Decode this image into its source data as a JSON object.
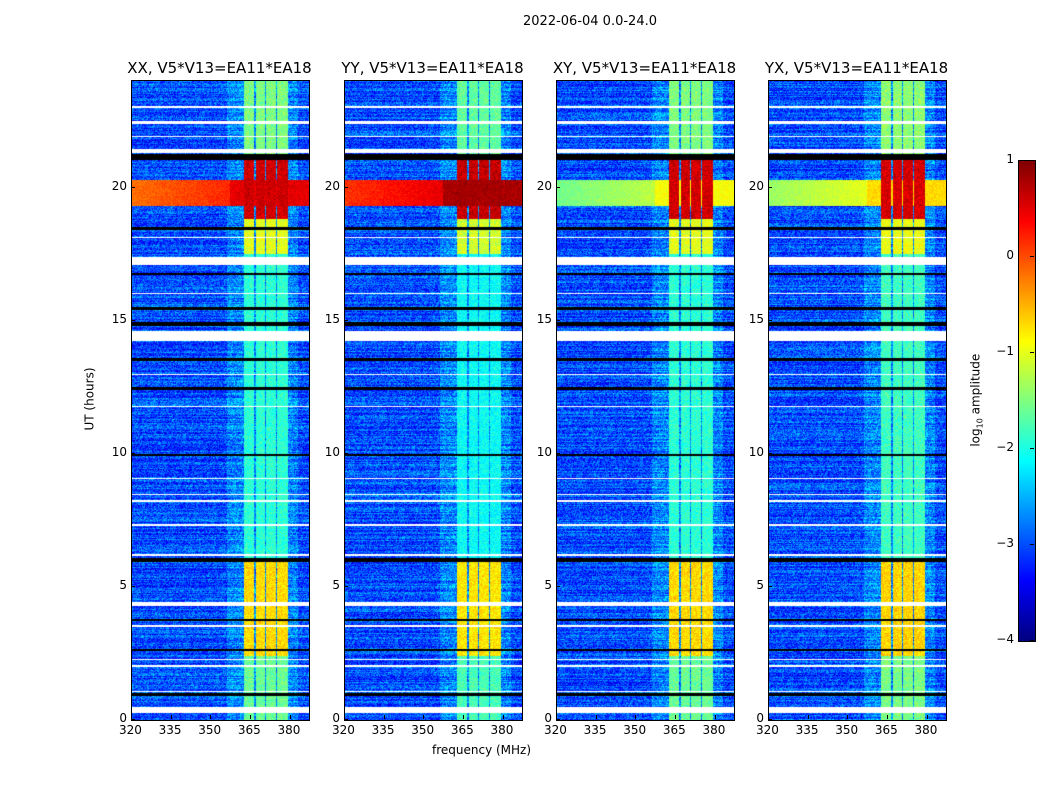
{
  "chart_data": {
    "type": "heatmap",
    "title": "2022-06-04 0.0-24.0",
    "xlabel": "frequency (MHz)",
    "ylabel": "UT (hours)",
    "xlim": [
      320,
      387
    ],
    "ylim": [
      0,
      24
    ],
    "xticks": [
      320,
      335,
      350,
      365,
      380
    ],
    "yticks": [
      0,
      5,
      10,
      15,
      20
    ],
    "panels": [
      {
        "title": "XX, V5*V13=EA11*EA18",
        "broadband_level": 0.2,
        "rfi_gain": 1.0
      },
      {
        "title": "YY, V5*V13=EA11*EA18",
        "broadband_level": 0.5,
        "rfi_gain": 1.1
      },
      {
        "title": "XY, V5*V13=EA11*EA18",
        "broadband_level": -1.2,
        "rfi_gain": 1.0
      },
      {
        "title": "YX, V5*V13=EA11*EA18",
        "broadband_level": -1.0,
        "rfi_gain": 0.95
      }
    ],
    "background_level": -3.0,
    "rfi_channels_mhz": [
      [
        362.5,
        366.2
      ],
      [
        366.8,
        370.3
      ],
      [
        370.9,
        374.4
      ],
      [
        375.0,
        379.0
      ]
    ],
    "rfi_periods_hours": [
      {
        "range": [
          0,
          2.4
        ],
        "level": -1.6
      },
      {
        "range": [
          2.4,
          6.1
        ],
        "level": -0.7
      },
      {
        "range": [
          6.1,
          17.5
        ],
        "level": -1.9
      },
      {
        "range": [
          17.5,
          18.8
        ],
        "level": -1.0
      },
      {
        "range": [
          18.8,
          21.1
        ],
        "level": 0.6
      },
      {
        "range": [
          21.1,
          24
        ],
        "level": -1.5
      }
    ],
    "broadband_hours": [
      19.3,
      20.3
    ],
    "flagged_white_hours": [
      [
        0.25,
        0.5
      ],
      [
        1.05,
        1.1
      ],
      [
        2.0,
        2.05
      ],
      [
        2.25,
        2.3
      ],
      [
        3.5,
        3.55
      ],
      [
        4.3,
        4.45
      ],
      [
        6.15,
        6.25
      ],
      [
        7.3,
        7.35
      ],
      [
        8.2,
        8.25
      ],
      [
        8.45,
        8.5
      ],
      [
        9.05,
        9.1
      ],
      [
        11.75,
        11.8
      ],
      [
        12.95,
        13.0
      ],
      [
        14.25,
        14.6
      ],
      [
        16.0,
        16.05
      ],
      [
        17.1,
        17.4
      ],
      [
        18.1,
        18.15
      ],
      [
        21.3,
        21.45
      ],
      [
        21.9,
        21.95
      ],
      [
        22.4,
        22.5
      ],
      [
        23.0,
        23.05
      ]
    ],
    "zero_black_hours": [
      [
        0.9,
        1.0
      ],
      [
        2.6,
        2.65
      ],
      [
        3.7,
        3.8
      ],
      [
        5.95,
        6.1
      ],
      [
        9.9,
        10.0
      ],
      [
        12.4,
        12.5
      ],
      [
        13.5,
        13.6
      ],
      [
        14.8,
        14.95
      ],
      [
        15.4,
        15.5
      ],
      [
        16.7,
        16.8
      ],
      [
        18.4,
        18.5
      ],
      [
        21.05,
        21.25
      ]
    ],
    "colorbar": {
      "label": "log10 amplitude",
      "label_main": "log",
      "label_sub": "10",
      "label_rest": " amplitude",
      "range": [
        -4,
        1
      ],
      "ticks": [
        1,
        0,
        -1,
        -2,
        -3,
        -4
      ],
      "tick_labels": [
        "1",
        "0",
        "−1",
        "−2",
        "−3",
        "−4"
      ],
      "colormap": "jet"
    }
  }
}
